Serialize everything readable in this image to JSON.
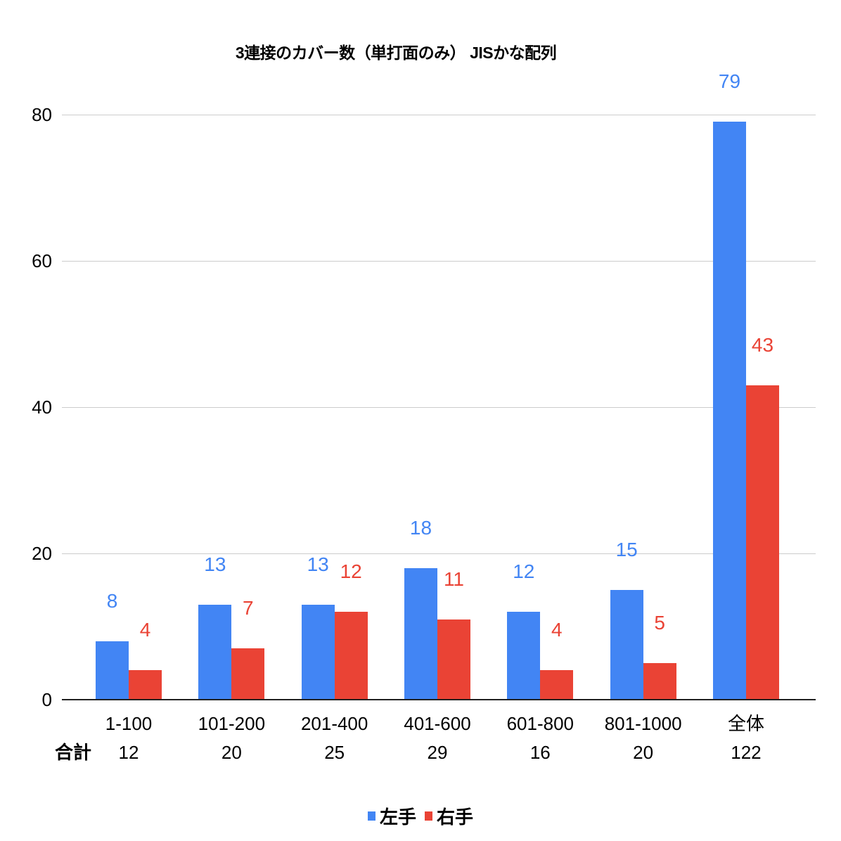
{
  "chart_data": {
    "type": "bar",
    "title": "3連接のカバー数（単打面のみ） JISかな配列",
    "categories": [
      "1-100",
      "101-200",
      "201-400",
      "401-600",
      "601-800",
      "801-1000",
      "全体"
    ],
    "series": [
      {
        "name": "左手",
        "color": "#4285F4",
        "values": [
          8,
          13,
          13,
          18,
          12,
          15,
          79
        ]
      },
      {
        "name": "右手",
        "color": "#EA4335",
        "values": [
          4,
          7,
          12,
          11,
          4,
          5,
          43
        ]
      }
    ],
    "totals_label": "合計",
    "totals": [
      12,
      20,
      25,
      29,
      16,
      20,
      122
    ],
    "y_ticks": [
      0,
      20,
      40,
      60,
      80
    ],
    "ylim": [
      0,
      80
    ],
    "grid": true,
    "legend_position": "bottom",
    "data_labels": true
  },
  "colors": {
    "series_left_hand": "#4285F4",
    "series_right_hand": "#EA4335",
    "gridline": "#cccccc",
    "axis_line": "#212121",
    "text": "#000000",
    "background": "#ffffff"
  }
}
